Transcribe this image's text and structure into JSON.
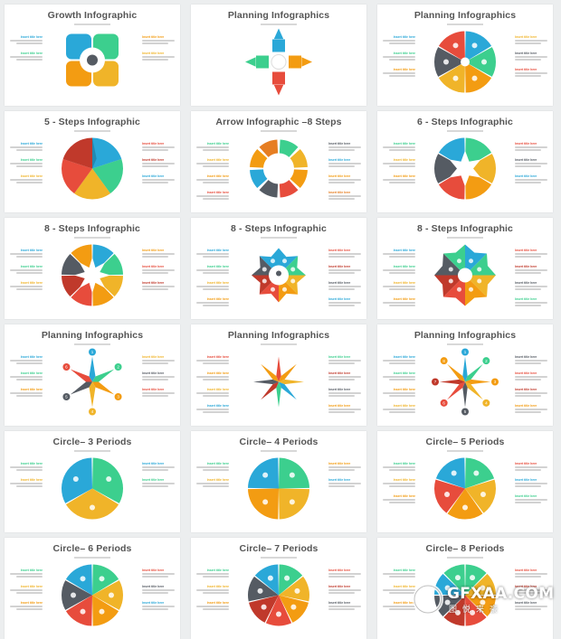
{
  "slides": [
    {
      "title": "Growth Infographic",
      "kind": "growth",
      "labels": [
        "75%",
        "70%",
        "25%",
        "50%"
      ],
      "colors": [
        "#2aa8d8",
        "#3ccf8e",
        "#f39c12",
        "#f0b429"
      ],
      "items": 2
    },
    {
      "title": "Planning Infographics",
      "kind": "arrows4",
      "labels": [
        "10%",
        "9%",
        "7%",
        "20%"
      ],
      "card_title": "Your Title Here",
      "colors": [
        "#2aa8d8",
        "#f39c12",
        "#e74c3c",
        "#3ccf8e"
      ]
    },
    {
      "title": "Planning Infographics",
      "kind": "pie",
      "n": 6,
      "colors": [
        "#2aa8d8",
        "#3ccf8e",
        "#f39c12",
        "#f0b429",
        "#555b63",
        "#e74c3c"
      ],
      "items": 3
    },
    {
      "title": "5 - Steps Infographic",
      "kind": "pinwheel",
      "n": 5,
      "colors": [
        "#2aa8d8",
        "#3ccf8e",
        "#f0b429",
        "#e74c3c",
        "#c0392b"
      ],
      "items": 3
    },
    {
      "title": "Arrow Infographic –8 Steps",
      "kind": "ring",
      "n": 8,
      "colors": [
        "#3ccf8e",
        "#f0b429",
        "#f39c12",
        "#e74c3c",
        "#555b63",
        "#2aa8d8",
        "#f39c12",
        "#e67e22"
      ],
      "items": 4
    },
    {
      "title": "6 - Steps Infographic",
      "kind": "star",
      "n": 6,
      "colors": [
        "#3ccf8e",
        "#f0b429",
        "#f39c12",
        "#e74c3c",
        "#555b63",
        "#2aa8d8"
      ],
      "items": 3
    },
    {
      "title": "8 - Steps Infographic",
      "kind": "star",
      "n": 8,
      "colors": [
        "#2aa8d8",
        "#3ccf8e",
        "#f0b429",
        "#f39c12",
        "#e74c3c",
        "#c0392b",
        "#555b63",
        "#f39c12"
      ],
      "items": 3
    },
    {
      "title": "8 - Steps Infographic",
      "kind": "octo",
      "n": 8,
      "colors": [
        "#2aa8d8",
        "#3ccf8e",
        "#f0b429",
        "#f39c12",
        "#e74c3c",
        "#c0392b",
        "#555b63",
        "#2aa8d8"
      ],
      "center_text": "Quality And Solutions",
      "items": 4
    },
    {
      "title": "8 - Steps Infographic",
      "kind": "flower",
      "n": 8,
      "colors": [
        "#2aa8d8",
        "#3ccf8e",
        "#f0b429",
        "#f39c12",
        "#e74c3c",
        "#c0392b",
        "#555b63",
        "#3ccf8e"
      ],
      "items": 4
    },
    {
      "title": "Planning Infographics",
      "kind": "starnum",
      "n": 6,
      "numbers": [
        "1",
        "2",
        "3",
        "4",
        "5",
        "6"
      ],
      "colors": [
        "#2aa8d8",
        "#3ccf8e",
        "#f39c12",
        "#f0b429",
        "#555b63",
        "#e74c3c"
      ],
      "items": 3
    },
    {
      "title": "Planning Infographics",
      "kind": "starburst",
      "n": 8,
      "colors": [
        "#e74c3c",
        "#f39c12",
        "#f0b429",
        "#2aa8d8",
        "#3ccf8e",
        "#c0392b",
        "#555b63",
        "#f39c12"
      ],
      "check_title": "Your Title Here",
      "items": 4
    },
    {
      "title": "Planning Infographics",
      "kind": "starnum2",
      "n": 8,
      "numbers": [
        "1",
        "2",
        "3",
        "4",
        "5",
        "6",
        "7",
        "8"
      ],
      "colors": [
        "#2aa8d8",
        "#3ccf8e",
        "#f39c12",
        "#f0b429",
        "#555b63",
        "#e74c3c",
        "#c0392b",
        "#f39c12"
      ],
      "check_title": "Your Title Here",
      "items": 4
    },
    {
      "title": "Circle– 3 Periods",
      "kind": "circle",
      "n": 3,
      "colors": [
        "#3ccf8e",
        "#f0b429",
        "#2aa8d8"
      ],
      "items": 2
    },
    {
      "title": "Circle– 4 Periods",
      "kind": "circle",
      "n": 4,
      "colors": [
        "#3ccf8e",
        "#f0b429",
        "#f39c12",
        "#2aa8d8"
      ],
      "items": 2
    },
    {
      "title": "Circle– 5 Periods",
      "kind": "circle",
      "n": 5,
      "colors": [
        "#3ccf8e",
        "#f0b429",
        "#f39c12",
        "#e74c3c",
        "#2aa8d8"
      ],
      "items": 3
    },
    {
      "title": "Circle– 6 Periods",
      "kind": "circle",
      "n": 6,
      "colors": [
        "#3ccf8e",
        "#f0b429",
        "#f39c12",
        "#e74c3c",
        "#555b63",
        "#2aa8d8"
      ],
      "items": 3
    },
    {
      "title": "Circle– 7 Periods",
      "kind": "circle",
      "n": 7,
      "colors": [
        "#3ccf8e",
        "#f0b429",
        "#f39c12",
        "#e74c3c",
        "#c0392b",
        "#555b63",
        "#2aa8d8"
      ],
      "items": 3
    },
    {
      "title": "Circle– 8 Periods",
      "kind": "circle",
      "n": 8,
      "colors": [
        "#3ccf8e",
        "#f0b429",
        "#f39c12",
        "#e74c3c",
        "#c0392b",
        "#555b63",
        "#2aa8d8",
        "#3ccf8e"
      ],
      "items": 3
    }
  ],
  "placeholder_title": "Insert title here",
  "watermark": {
    "text": "GFXAA.COM",
    "cn": "图悦来豪"
  }
}
